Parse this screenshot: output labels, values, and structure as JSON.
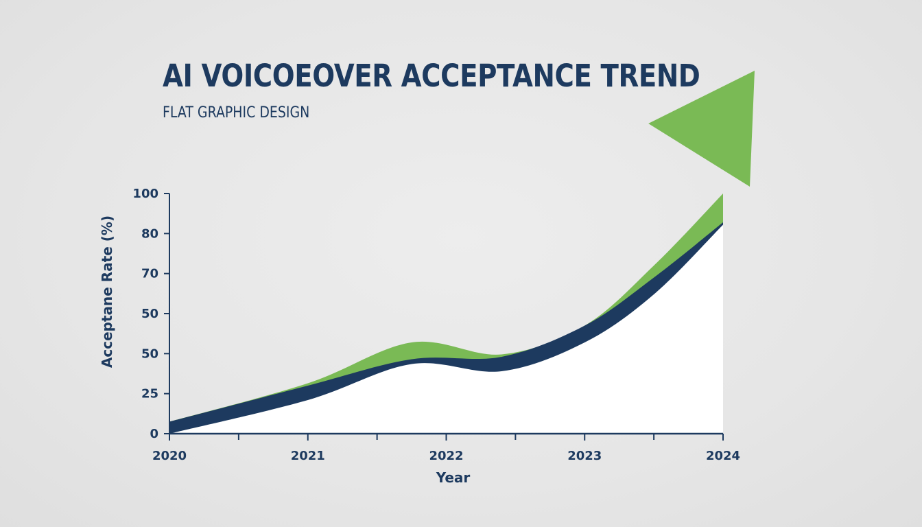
{
  "header": {
    "title": "AI VOICOEOVER ACCEPTANCE TREND",
    "subtitle": "FLAT GRAPHIC DESIGN"
  },
  "chart_data": {
    "type": "area",
    "title": "AI VOICOEOVER ACCEPTANCE TREND",
    "subtitle": "FLAT GRAPHIC DESIGN",
    "xlabel": "Year",
    "ylabel": "Acceptane Rate (%)",
    "x_tick_labels": [
      "2020",
      "2021",
      "2022",
      "2023",
      "2024"
    ],
    "y_tick_labels": [
      "0",
      "25",
      "50",
      "50",
      "70",
      "80",
      "100"
    ],
    "grid": false,
    "legend": "none",
    "series": [
      {
        "color": "#7aba55",
        "x": [
          2020,
          2021,
          2021.75,
          2022.4,
          2023,
          2023.5,
          2024
        ],
        "values": [
          5,
          21,
          38,
          33,
          45,
          70,
          100
        ]
      },
      {
        "color": "#1d3a5f",
        "x": [
          2020,
          2021,
          2021.75,
          2022.4,
          2023,
          2023.5,
          2024
        ],
        "values": [
          5,
          20,
          31,
          32,
          45,
          65,
          88
        ]
      },
      {
        "color": "#ffffff",
        "x": [
          2020,
          2021,
          2021.75,
          2022.4,
          2023,
          2023.5,
          2024
        ],
        "values": [
          0,
          14,
          29,
          26,
          38,
          58,
          87
        ]
      }
    ],
    "colors": {
      "green": "#7aba55",
      "navy": "#1d3a5f",
      "white": "#ffffff",
      "axis": "#1d3a5f"
    }
  }
}
